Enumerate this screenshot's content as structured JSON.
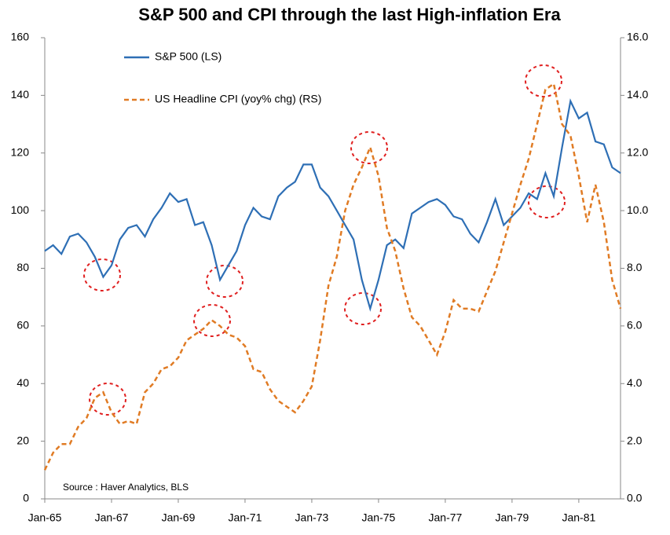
{
  "chart_data": {
    "type": "line",
    "title": "S&P 500 and CPI through the last High-inflation Era",
    "source": "Source : Haver Analytics, BLS",
    "categories": [
      "Jan-65",
      null,
      null,
      null,
      null,
      null,
      null,
      null,
      "Jan-67",
      null,
      null,
      null,
      null,
      null,
      null,
      null,
      "Jan-69",
      null,
      null,
      null,
      null,
      null,
      null,
      null,
      "Jan-71",
      null,
      null,
      null,
      null,
      null,
      null,
      null,
      "Jan-73",
      null,
      null,
      null,
      null,
      null,
      null,
      null,
      "Jan-75",
      null,
      null,
      null,
      null,
      null,
      null,
      null,
      "Jan-77",
      null,
      null,
      null,
      null,
      null,
      null,
      null,
      "Jan-79",
      null,
      null,
      null,
      null,
      null,
      null,
      null,
      "Jan-81",
      null,
      null,
      null,
      null,
      null
    ],
    "series": [
      {
        "name": "S&P 500 (LS)",
        "color": "#2e6fb5",
        "dash": false,
        "values": [
          86,
          88,
          85,
          91,
          92,
          89,
          84,
          77,
          81,
          90,
          94,
          95,
          91,
          97,
          101,
          106,
          103,
          104,
          95,
          96,
          88,
          76,
          81,
          86,
          95,
          101,
          98,
          97,
          105,
          108,
          110,
          116,
          116,
          108,
          105,
          100,
          95,
          90,
          76,
          66,
          76,
          88,
          90,
          87,
          99,
          101,
          103,
          104,
          102,
          98,
          97,
          92,
          89,
          96,
          104,
          95,
          98,
          101,
          106,
          104,
          113,
          105,
          122,
          138,
          132,
          134,
          124,
          123,
          115,
          113
        ]
      },
      {
        "name": "US Headline CPI (yoy% chg) (RS)",
        "color": "#e07b24",
        "dash": true,
        "axis": "y2",
        "values": [
          1.0,
          1.6,
          1.9,
          1.9,
          2.5,
          2.8,
          3.5,
          3.7,
          3.0,
          2.6,
          2.7,
          2.6,
          3.7,
          4.0,
          4.5,
          4.6,
          4.9,
          5.5,
          5.7,
          5.9,
          6.2,
          6.0,
          5.7,
          5.6,
          5.3,
          4.5,
          4.4,
          3.8,
          3.4,
          3.2,
          3.0,
          3.4,
          3.9,
          5.5,
          7.4,
          8.4,
          10.0,
          10.9,
          11.5,
          12.2,
          11.2,
          9.4,
          8.6,
          7.3,
          6.3,
          6.0,
          5.5,
          5.0,
          5.8,
          6.9,
          6.6,
          6.6,
          6.5,
          7.2,
          7.9,
          8.9,
          9.9,
          10.9,
          11.8,
          13.0,
          14.2,
          14.4,
          13.0,
          12.6,
          11.2,
          9.6,
          10.9,
          9.6,
          7.6,
          6.6
        ]
      }
    ],
    "ylim": [
      0,
      160
    ],
    "yticks": [
      0,
      20,
      40,
      60,
      80,
      100,
      120,
      140,
      160
    ],
    "y2lim": [
      0,
      16
    ],
    "y2ticks": [
      {
        "value": 0,
        "label": "0.0"
      },
      {
        "value": 2,
        "label": "2.0"
      },
      {
        "value": 4,
        "label": "4.0"
      },
      {
        "value": 6,
        "label": "6.0"
      },
      {
        "value": 8,
        "label": "8.0"
      },
      {
        "value": 10,
        "label": "10.0"
      },
      {
        "value": 12,
        "label": "12.0"
      },
      {
        "value": 14,
        "label": "14.0"
      },
      {
        "value": 16,
        "label": "16.0"
      }
    ],
    "grid": false
  }
}
